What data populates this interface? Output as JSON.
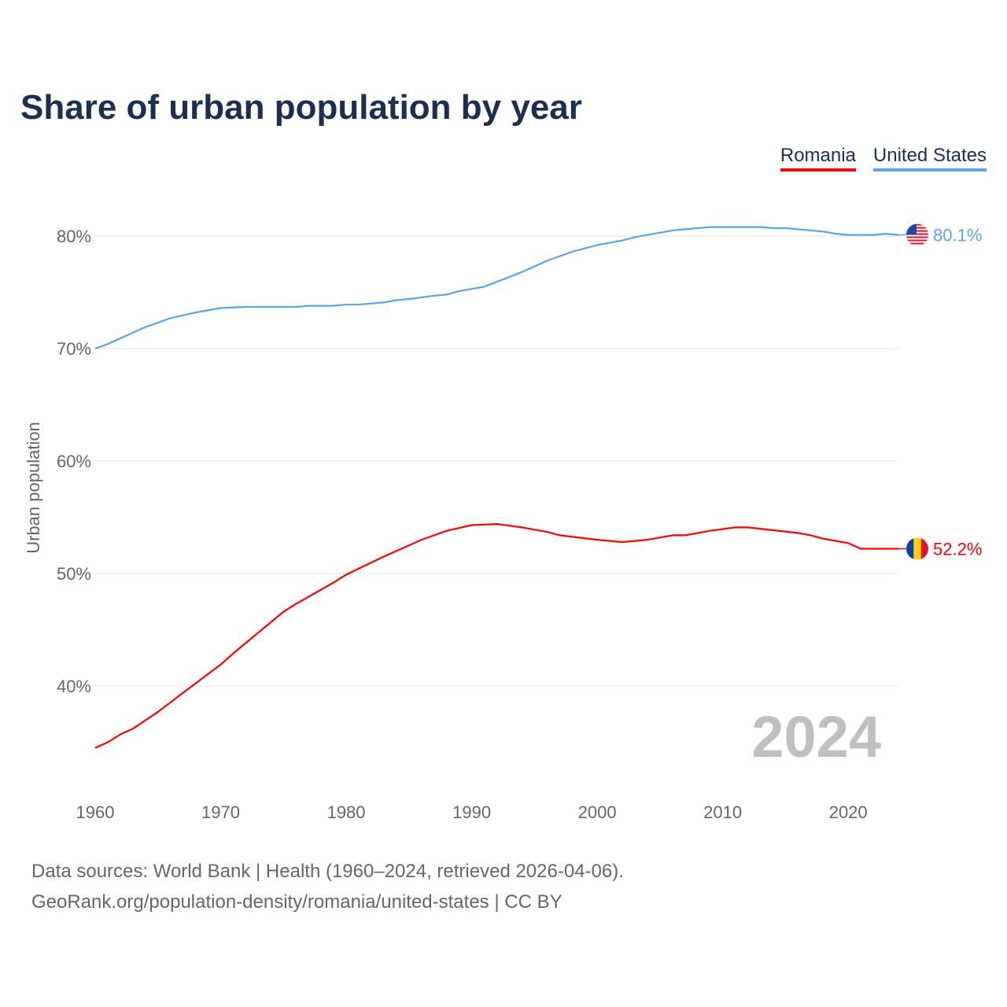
{
  "title": "Share of urban population by year",
  "legend": [
    "Romania",
    "United States"
  ],
  "year_watermark": "2024",
  "footer": {
    "line1": "Data sources: World Bank | Health (1960–2024, retrieved 2026-04-06).",
    "line2": "GeoRank.org/population-density/romania/united-states | CC BY"
  },
  "chart_data": {
    "type": "line",
    "title": "Share of urban population by year",
    "xlabel": "",
    "ylabel": "Urban population",
    "xlim": [
      1960,
      2024
    ],
    "ylim": [
      32,
      84
    ],
    "xticks": [
      1960,
      1970,
      1980,
      1990,
      2000,
      2010,
      2020
    ],
    "xtick_labels": [
      "1960",
      "1970",
      "1980",
      "1990",
      "2000",
      "2010",
      "2020"
    ],
    "yticks": [
      40,
      50,
      60,
      70,
      80
    ],
    "ytick_labels": [
      "40%",
      "50%",
      "60%",
      "70%",
      "80%"
    ],
    "grid": true,
    "legend_placement": "top-right",
    "series": [
      {
        "name": "Romania",
        "color": "#ff0000",
        "end_label": "52.2%",
        "flag": "romania-flag",
        "x": [
          1960,
          1961,
          1962,
          1963,
          1965,
          1967,
          1970,
          1971,
          1975,
          1976,
          1979,
          1980,
          1983,
          1986,
          1988,
          1990,
          1992,
          1994,
          1996,
          1997,
          2000,
          2002,
          2004,
          2006,
          2007,
          2009,
          2011,
          2012,
          2016,
          2017,
          2018,
          2019,
          2020,
          2021,
          2024
        ],
        "y": [
          34.5,
          35.0,
          35.7,
          36.2,
          37.7,
          39.4,
          41.9,
          42.9,
          46.6,
          47.3,
          49.2,
          49.9,
          51.5,
          53.0,
          53.8,
          54.3,
          54.4,
          54.1,
          53.7,
          53.4,
          53.0,
          52.8,
          53.0,
          53.4,
          53.4,
          53.8,
          54.1,
          54.1,
          53.6,
          53.4,
          53.1,
          52.9,
          52.7,
          52.2,
          52.2
        ]
      },
      {
        "name": "United States",
        "color": "#5ba3ea",
        "end_label": "80.1%",
        "flag": "united-states-flag",
        "x": [
          1960,
          1961,
          1962,
          1964,
          1966,
          1968,
          1970,
          1972,
          1976,
          1977,
          1979,
          1980,
          1981,
          1983,
          1984,
          1985,
          1987,
          1988,
          1989,
          1991,
          1994,
          1996,
          1998,
          2000,
          2002,
          2003,
          2006,
          2009,
          2013,
          2014,
          2015,
          2018,
          2019,
          2020,
          2022,
          2023,
          2024
        ],
        "y": [
          70.0,
          70.4,
          70.9,
          71.9,
          72.7,
          73.2,
          73.6,
          73.7,
          73.7,
          73.8,
          73.8,
          73.9,
          73.9,
          74.1,
          74.3,
          74.4,
          74.7,
          74.8,
          75.1,
          75.5,
          76.8,
          77.8,
          78.6,
          79.2,
          79.6,
          79.9,
          80.5,
          80.8,
          80.8,
          80.7,
          80.7,
          80.4,
          80.2,
          80.1,
          80.1,
          80.2,
          80.1
        ]
      }
    ]
  }
}
